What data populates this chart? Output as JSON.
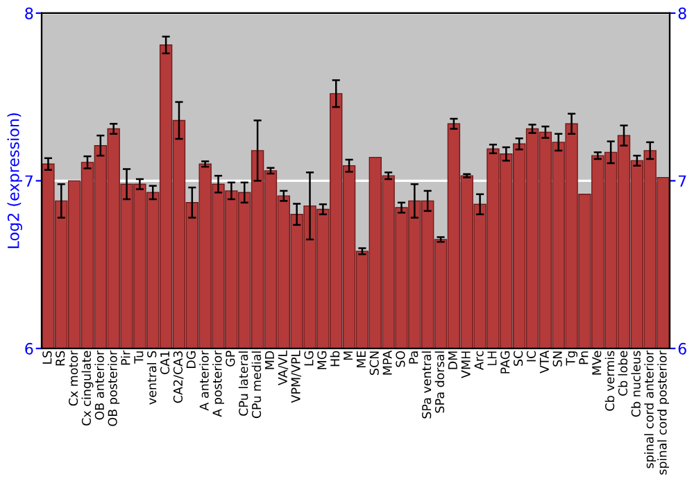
{
  "chart_data": {
    "type": "bar",
    "ylabel": "Log2 (expression)",
    "categories": [
      "LS",
      "RS",
      "Cx motor",
      "Cx cingulate",
      "OB anterior",
      "OB posterior",
      "Pir",
      "Tu",
      "ventral S",
      "CA1",
      "CA2/CA3",
      "DG",
      "A anterior",
      "A posterior",
      "GP",
      "CPu lateral",
      "CPu medial",
      "MD",
      "VA/VL",
      "VPM/VPL",
      "LG",
      "MG",
      "Hb",
      "M",
      "ME",
      "SCN",
      "MPA",
      "SO",
      "Pa",
      "SPa ventral",
      "SPa dorsal",
      "DM",
      "VMH",
      "Arc",
      "LH",
      "PAG",
      "SC",
      "IC",
      "VTA",
      "SN",
      "Tg",
      "Pn",
      "MVe",
      "Cb vermis",
      "Cb lobe",
      "Cb nucleus",
      "spinal cord anterior",
      "spinal cord posterior"
    ],
    "values": [
      7.1,
      6.88,
      7.0,
      7.11,
      7.21,
      7.31,
      6.98,
      6.98,
      6.93,
      7.81,
      7.36,
      6.87,
      7.1,
      6.98,
      6.94,
      6.93,
      7.18,
      7.06,
      6.91,
      6.8,
      6.85,
      6.83,
      7.52,
      7.09,
      6.58,
      7.14,
      7.03,
      6.84,
      6.88,
      6.88,
      6.65,
      7.34,
      7.03,
      6.86,
      7.19,
      7.16,
      7.22,
      7.31,
      7.29,
      7.23,
      7.34,
      6.92,
      7.15,
      7.17,
      7.27,
      7.12,
      7.18,
      7.02
    ],
    "errors": [
      0.035,
      0.1,
      null,
      0.036,
      0.06,
      0.03,
      0.09,
      0.03,
      0.04,
      0.05,
      0.11,
      0.09,
      0.016,
      0.05,
      0.05,
      0.06,
      0.18,
      0.017,
      0.03,
      0.063,
      0.2,
      0.03,
      0.08,
      0.036,
      0.018,
      null,
      0.02,
      0.03,
      0.1,
      0.06,
      0.014,
      0.03,
      0.01,
      0.06,
      0.026,
      0.04,
      0.033,
      0.025,
      0.034,
      0.05,
      0.06,
      null,
      0.02,
      0.065,
      0.06,
      0.03,
      0.05,
      null
    ],
    "color": "#b53a3a",
    "ylim": [
      6,
      8
    ],
    "yticks": [
      6,
      7,
      8
    ],
    "y2lim": [
      6,
      8
    ],
    "y2ticks": [
      6,
      7,
      8
    ],
    "grid": "y"
  }
}
